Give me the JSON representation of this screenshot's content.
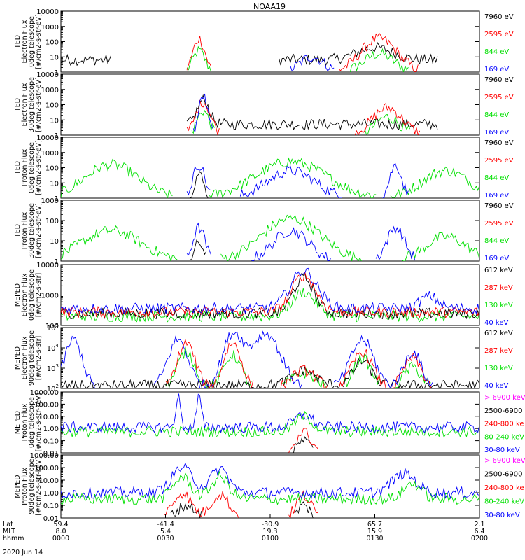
{
  "title": "NOAA19",
  "date_label": "2020 Jun 14",
  "colors": {
    "black": "#000000",
    "red": "#ff0000",
    "green": "#00e000",
    "blue": "#0000ff",
    "magenta": "#ff00ff"
  },
  "bottom_axis": {
    "row_labels": [
      "Lat",
      "MLT",
      "hhmm"
    ],
    "columns": [
      {
        "lat": "59.4",
        "mlt": "8.0",
        "hhmm": "0000"
      },
      {
        "lat": "-41.4",
        "mlt": "5.4",
        "hhmm": "0030"
      },
      {
        "lat": "-30.9",
        "mlt": "19.3",
        "hhmm": "0100"
      },
      {
        "lat": "65.7",
        "mlt": "15.9",
        "hhmm": "0130"
      },
      {
        "lat": "2.1",
        "mlt": "6.4",
        "hhmm": "0200"
      }
    ]
  },
  "chart_data": [
    {
      "type": "line",
      "scale": "log",
      "ylabel_lines": [
        "TED",
        "Electron Flux",
        "0deg telescope",
        "[#/cm2-s-str-eV]"
      ],
      "yticks": [
        "10000",
        "1000",
        "100",
        "10",
        "1"
      ],
      "ylim": [
        1,
        10000
      ],
      "legend": [
        {
          "label": "7960 eV",
          "color": "black"
        },
        {
          "label": "2595 eV",
          "color": "red"
        },
        {
          "label": "844 eV",
          "color": "green"
        },
        {
          "label": "169 eV",
          "color": "blue"
        }
      ]
    },
    {
      "type": "line",
      "scale": "log",
      "ylabel_lines": [
        "TED",
        "Electron Flux",
        "30deg telescope",
        "[#/cm2-s-str-eV]"
      ],
      "yticks": [
        "10000",
        "1000",
        "100",
        "10",
        "1"
      ],
      "ylim": [
        1,
        10000
      ],
      "legend": [
        {
          "label": "7960 eV",
          "color": "black"
        },
        {
          "label": "2595 eV",
          "color": "red"
        },
        {
          "label": "844 eV",
          "color": "green"
        },
        {
          "label": "169 eV",
          "color": "blue"
        }
      ]
    },
    {
      "type": "line",
      "scale": "log",
      "ylabel_lines": [
        "TED",
        "Proton Flux",
        "0deg telescope",
        "[#/cm2-s-str-eV]"
      ],
      "yticks": [
        "10000",
        "1000",
        "100",
        "10",
        "1"
      ],
      "ylim": [
        1,
        10000
      ],
      "legend": [
        {
          "label": "7960 eV",
          "color": "black"
        },
        {
          "label": "2595 eV",
          "color": "red"
        },
        {
          "label": "844 eV",
          "color": "green"
        },
        {
          "label": "169 eV",
          "color": "blue"
        }
      ]
    },
    {
      "type": "line",
      "scale": "log",
      "ylabel_lines": [
        "TED",
        "Proton Flux",
        "30deg telescope",
        "[#/cm2-s-str-eV]"
      ],
      "yticks": [
        "1000",
        "100",
        "10",
        "1"
      ],
      "ylim": [
        1,
        1000
      ],
      "legend": [
        {
          "label": "7960 eV",
          "color": "black"
        },
        {
          "label": "2595 eV",
          "color": "red"
        },
        {
          "label": "844 eV",
          "color": "green"
        },
        {
          "label": "169 eV",
          "color": "blue"
        }
      ]
    },
    {
      "type": "line",
      "scale": "log",
      "ylabel_lines": [
        "MEPED",
        "Electron Flux",
        "0deg telescope",
        "[#/cm2-s-str]"
      ],
      "yticks": [
        "10000",
        "1000",
        "100"
      ],
      "ylim": [
        30,
        10000
      ],
      "legend": [
        {
          "label": "612 keV",
          "color": "black"
        },
        {
          "label": "287 keV",
          "color": "red"
        },
        {
          "label": "130 keV",
          "color": "green"
        },
        {
          "label": "40 keV",
          "color": "blue"
        }
      ]
    },
    {
      "type": "line",
      "scale": "log",
      "ylabel_lines": [
        "MEPED",
        "Electron Flux",
        "90deg telescope",
        "[#/cm2-s-str]"
      ],
      "yticks": [
        "10",
        "10",
        "10",
        "10"
      ],
      "ytick_exponents": [
        "5",
        "4",
        "3",
        "2"
      ],
      "ylim": [
        50,
        100000
      ],
      "legend": [
        {
          "label": "612 keV",
          "color": "black"
        },
        {
          "label": "287 keV",
          "color": "red"
        },
        {
          "label": "130 keV",
          "color": "green"
        },
        {
          "label": "40 keV",
          "color": "blue"
        }
      ]
    },
    {
      "type": "line",
      "scale": "log",
      "ylabel_lines": [
        "MEPED",
        "Proton Flux",
        "0deg telescope",
        "[#/cm2-s-str-keV]"
      ],
      "yticks": [
        "1000.00",
        "100.00",
        "10.00",
        "1.00",
        "0.10",
        "0.01"
      ],
      "ylim": [
        0.01,
        1000
      ],
      "legend": [
        {
          "label": "> 6900 keV",
          "color": "magenta"
        },
        {
          "label": "2500-6900",
          "color": "black"
        },
        {
          "label": "240-800 ke",
          "color": "red"
        },
        {
          "label": "80-240 keV",
          "color": "green"
        },
        {
          "label": "30-80 keV",
          "color": "blue"
        }
      ]
    },
    {
      "type": "line",
      "scale": "log",
      "ylabel_lines": [
        "MEPED",
        "Proton Flux",
        "90deg telescope",
        "[#/cm2-s-str-keV]"
      ],
      "yticks": [
        "1000.00",
        "100.00",
        "10.00",
        "1.00",
        "0.10",
        "0.01"
      ],
      "ylim": [
        0.01,
        1000
      ],
      "legend": [
        {
          "label": "> 6900 keV",
          "color": "magenta"
        },
        {
          "label": "2500-6900",
          "color": "black"
        },
        {
          "label": "240-800 ke",
          "color": "red"
        },
        {
          "label": "80-240 keV",
          "color": "green"
        },
        {
          "label": "30-80 keV",
          "color": "blue"
        }
      ]
    }
  ]
}
